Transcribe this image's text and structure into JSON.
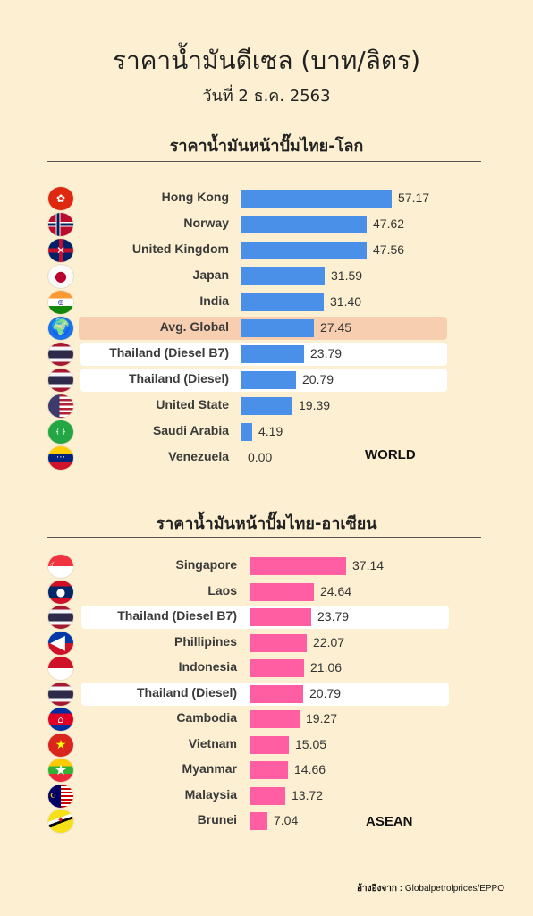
{
  "header": {
    "title": "ราคาน้ำมันดีเซล (บาท/ลิตร)",
    "subtitle": "วันที่ 2 ธ.ค. 2563"
  },
  "source": {
    "label": "อ้างอิงจาก :",
    "text": "Globalpetrolprices/EPPO"
  },
  "chart_data": [
    {
      "type": "bar",
      "orientation": "horizontal",
      "title": "ราคาน้ำมันหน้าปั๊มไทย-โลก",
      "tag": "WORLD",
      "bar_color": "#4a90e8",
      "highlight_colors": {
        "avg": "#f7cfb0",
        "thai": "#ffffff"
      },
      "max_value": 57.17,
      "categories": [
        "Hong Kong",
        "Norway",
        "United Kingdom",
        "Japan",
        "India",
        "Avg. Global",
        "Thailand (Diesel B7)",
        "Thailand (Diesel)",
        "United State",
        "Saudi Arabia",
        "Venezuela"
      ],
      "values": [
        57.17,
        47.62,
        47.56,
        31.59,
        31.4,
        27.45,
        23.79,
        20.79,
        19.39,
        4.19,
        0.0
      ],
      "value_labels": [
        "57.17",
        "47.62",
        "47.56",
        "31.59",
        "31.40",
        "27.45",
        "23.79",
        "20.79",
        "19.39",
        "4.19",
        "0.00"
      ],
      "highlight": [
        "",
        "",
        "",
        "",
        "",
        "avg",
        "thai",
        "thai",
        "",
        "",
        ""
      ],
      "flags": [
        "hong-kong-flag-icon",
        "norway-flag-icon",
        "uk-flag-icon",
        "japan-flag-icon",
        "india-flag-icon",
        "globe-icon",
        "thailand-flag-icon",
        "thailand-flag-icon",
        "usa-flag-icon",
        "saudi-arabia-flag-icon",
        "venezuela-flag-icon"
      ]
    },
    {
      "type": "bar",
      "orientation": "horizontal",
      "title": "ราคาน้ำมันหน้าปั๊มไทย-อาเซียน",
      "tag": "ASEAN",
      "bar_color": "#ff5fa2",
      "highlight_colors": {
        "thai": "#ffffff"
      },
      "max_value": 37.14,
      "categories": [
        "Singapore",
        "Laos",
        "Thailand (Diesel B7)",
        "Phillipines",
        "Indonesia",
        "Thailand (Diesel)",
        "Cambodia",
        "Vietnam",
        "Myanmar",
        "Malaysia",
        "Brunei"
      ],
      "values": [
        37.14,
        24.64,
        23.79,
        22.07,
        21.06,
        20.79,
        19.27,
        15.05,
        14.66,
        13.72,
        7.04
      ],
      "value_labels": [
        "37.14",
        "24.64",
        "23.79",
        "22.07",
        "21.06",
        "20.79",
        "19.27",
        "15.05",
        "14.66",
        "13.72",
        "7.04"
      ],
      "highlight": [
        "",
        "",
        "thai",
        "",
        "",
        "thai",
        "",
        "",
        "",
        "",
        ""
      ],
      "flags": [
        "singapore-flag-icon",
        "laos-flag-icon",
        "thailand-flag-icon",
        "philippines-flag-icon",
        "indonesia-flag-icon",
        "thailand-flag-icon",
        "cambodia-flag-icon",
        "vietnam-flag-icon",
        "myanmar-flag-icon",
        "malaysia-flag-icon",
        "brunei-flag-icon"
      ]
    }
  ]
}
